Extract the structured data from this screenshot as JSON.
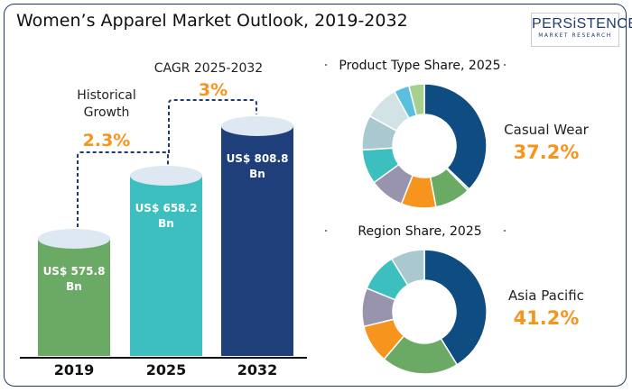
{
  "title": "Women’s Apparel Market Outlook, 2019-2032",
  "logo": {
    "name": "PERSiSTENCE",
    "tagline": "MARKET RESEARCH"
  },
  "chart_data": [
    {
      "type": "bar",
      "categories": [
        "2019",
        "2025",
        "2032"
      ],
      "values": [
        575.8,
        658.2,
        808.8
      ],
      "data_labels": [
        "US$ 575.8\nBn",
        "US$ 658.2\nBn",
        "US$ 808.8\nBn"
      ],
      "unit": "US$ Bn",
      "colors": [
        "#6aaa64",
        "#3dbfbf",
        "#1f3f7a"
      ],
      "annotations": [
        {
          "label": "Historical\nGrowth",
          "value": "2.3%"
        },
        {
          "label": "CAGR 2025-2032",
          "value": "3%"
        }
      ]
    },
    {
      "type": "pie",
      "title": "Product Type Share, 2025",
      "highlight": {
        "label": "Casual Wear",
        "value": "37.2%"
      },
      "values": [
        37.2,
        0.5,
        9.3,
        9,
        9,
        9,
        9,
        9,
        4,
        4
      ],
      "colors": [
        "#0f4c81",
        "#8aa8c0",
        "#6aaa64",
        "#f7941d",
        "#9994ad",
        "#3dbfbf",
        "#a9c8cf",
        "#d2e3e6",
        "#5bc0de",
        "#a8d08d"
      ]
    },
    {
      "type": "pie",
      "title": "Region Share, 2025",
      "highlight": {
        "label": "Asia Pacific",
        "value": "41.2%"
      },
      "values": [
        41.2,
        20,
        10,
        10,
        10,
        8.8
      ],
      "colors": [
        "#0f4c81",
        "#6aaa64",
        "#f7941d",
        "#9994ad",
        "#3dbfbf",
        "#a9c8cf"
      ]
    }
  ],
  "colors": {
    "accent": "#f7941d",
    "navy": "#1e3a6e"
  }
}
